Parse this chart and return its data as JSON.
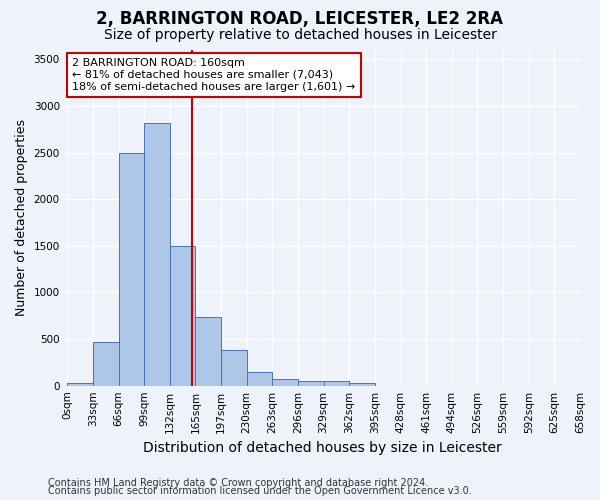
{
  "title": "2, BARRINGTON ROAD, LEICESTER, LE2 2RA",
  "subtitle": "Size of property relative to detached houses in Leicester",
  "xlabel": "Distribution of detached houses by size in Leicester",
  "ylabel": "Number of detached properties",
  "bar_values": [
    25,
    470,
    2500,
    2820,
    1500,
    740,
    380,
    145,
    75,
    45,
    45,
    25,
    0,
    0,
    0,
    0,
    0,
    0,
    0,
    0
  ],
  "categories": [
    "0sqm",
    "33sqm",
    "66sqm",
    "99sqm",
    "132sqm",
    "165sqm",
    "197sqm",
    "230sqm",
    "263sqm",
    "296sqm",
    "329sqm",
    "362sqm",
    "395sqm",
    "428sqm",
    "461sqm",
    "494sqm",
    "526sqm",
    "559sqm",
    "592sqm",
    "625sqm",
    "658sqm"
  ],
  "bar_color": "#aec6e8",
  "bar_edge_color": "#4472c4",
  "bar_width": 1.0,
  "vline_color": "#cc0000",
  "annotation_text": "2 BARRINGTON ROAD: 160sqm\n← 81% of detached houses are smaller (7,043)\n18% of semi-detached houses are larger (1,601) →",
  "annotation_box_color": "#ffffff",
  "annotation_box_edge": "#cc0000",
  "ylim": [
    0,
    3600
  ],
  "yticks": [
    0,
    500,
    1000,
    1500,
    2000,
    2500,
    3000,
    3500
  ],
  "background_color": "#eef2fb",
  "grid_color": "#ffffff",
  "footer1": "Contains HM Land Registry data © Crown copyright and database right 2024.",
  "footer2": "Contains public sector information licensed under the Open Government Licence v3.0.",
  "title_fontsize": 12,
  "subtitle_fontsize": 10,
  "axis_label_fontsize": 9,
  "tick_fontsize": 7.5,
  "annotation_fontsize": 8,
  "footer_fontsize": 7
}
